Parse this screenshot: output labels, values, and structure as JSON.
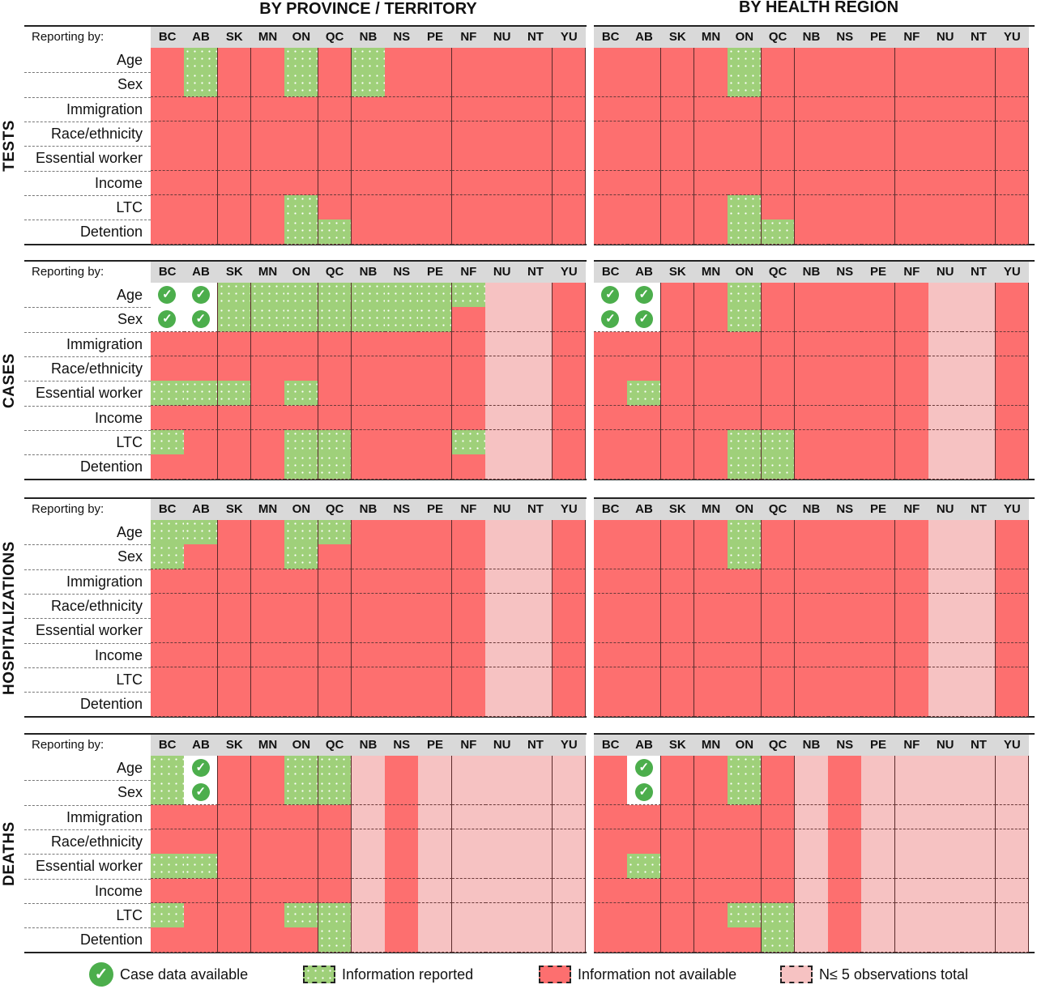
{
  "chart_data": {
    "type": "heatmap",
    "column_groups": [
      "BY PROVINCE / TERRITORY",
      "BY HEALTH REGION"
    ],
    "columns": [
      "BC",
      "AB",
      "SK",
      "MN",
      "ON",
      "QC",
      "NB",
      "NS",
      "PE",
      "NF",
      "NU",
      "NT",
      "YU"
    ],
    "row_header": "Reporting by:",
    "variables": [
      "Age",
      "Sex",
      "Immigration",
      "Race/ethnicity",
      "Essential worker",
      "Income",
      "LTC",
      "Detention"
    ],
    "codes": {
      "C": "Case data available",
      "G": "Information reported",
      "R": "Information not available",
      "P": "N≤ 5 observations total"
    },
    "sections": [
      {
        "name": "TESTS",
        "province": [
          "RGRRGRGRRRRRR",
          "RGRRGRGRRRRRR",
          "RRRRRRRRRRRRR",
          "RRRRRRRRRRRRR",
          "RRRRRRRRRRRRR",
          "RRRRRRRRRRRRR",
          "RRRRGRRRRRRRR",
          "RRRRGGRRRRRRR"
        ],
        "region": [
          "RRRRGRRRRRRRR",
          "RRRRGRRRRRRRR",
          "RRRRRRRRRRRRR",
          "RRRRRRRRRRRRR",
          "RRRRRRRRRRRRR",
          "RRRRRRRRRRRRR",
          "RRRRGRRRRRRRR",
          "RRRRGGRRRRRRR"
        ]
      },
      {
        "name": "CASES",
        "province": [
          "CCGGGGGGGGPPR",
          "CCGGGGGGGRPPR",
          "RRRRRRRRRRPPR",
          "RRRRRRRRRRPPR",
          "GGGRGRRRRRPPR",
          "RRRRRRRRRRPPR",
          "GRRRGGRRRGPPR",
          "RRRRGGRRRRPPR"
        ],
        "region": [
          "CCRRGRRRRRPPR",
          "CCRRGRRRRRPPR",
          "RRRRRRRRRRPPR",
          "RRRRRRRRRRPPR",
          "RGRRRRRRRRPPR",
          "RRRRRRRRRRPPR",
          "RRRRGGRRRRPPR",
          "RRRRGGRRRRPPR"
        ]
      },
      {
        "name": "HOSPITALIZATIONS",
        "province": [
          "GGRRGGRRRRPPR",
          "GRRRGRRRRRPPR",
          "RRRRRRRRRRPPR",
          "RRRRRRRRRRPPR",
          "RRRRRRRRRRPPR",
          "RRRRRRRRRRPPR",
          "RRRRRRRRRRPPR",
          "RRRRRRRRRRPPR"
        ],
        "region": [
          "RRRRGRRRRRPPR",
          "RRRRGRRRRRPPR",
          "RRRRRRRRRRPPR",
          "RRRRRRRRRRPPR",
          "RRRRRRRRRRPPR",
          "RRRRRRRRRRPPR",
          "RRRRRRRRRRPPR",
          "RRRRRRRRRRPPR"
        ]
      },
      {
        "name": "DEATHS",
        "province": [
          "GCRRGGPRPPPPP",
          "GCRRGGPRPPPPP",
          "RRRRRRPRPPPPP",
          "RRRRRRPRPPPPP",
          "GGRRRRPRPPPPP",
          "RRRRRRPRPPPPP",
          "GRRRGGPRPPPPP",
          "RRRRRGPRPPPPP"
        ],
        "region": [
          "RCRRGRPRPPPPP",
          "RCRRGRPRPPPPP",
          "RRRRRRPRPPPPP",
          "RRRRRRPRPPPPP",
          "RGRRRRPRPPPPP",
          "RRRRRRPRPPPPP",
          "RRRRGGPRPPPPP",
          "RRRRRGPRPPPPP"
        ]
      }
    ]
  },
  "legend": [
    {
      "code": "C",
      "label": "Case data available",
      "icon": "check-circle-icon"
    },
    {
      "code": "G",
      "label": "Information reported"
    },
    {
      "code": "R",
      "label": "Information not available"
    },
    {
      "code": "P",
      "label": "N≤ 5 observations total"
    }
  ],
  "colors": {
    "C": "#4cae4c",
    "G": "#9fd07a",
    "R": "#fd6f6f",
    "P": "#f6c2c2",
    "header": "#d9d9d9"
  }
}
